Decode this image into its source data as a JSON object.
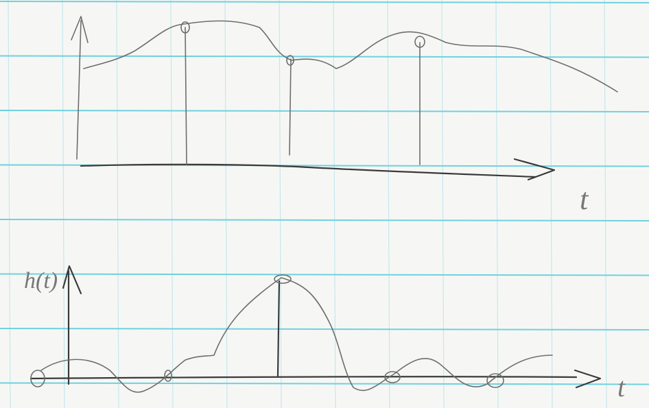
{
  "top_plot": {
    "x_label": "t"
  },
  "bottom_plot": {
    "y_label": "h(t)",
    "x_label": "t"
  }
}
